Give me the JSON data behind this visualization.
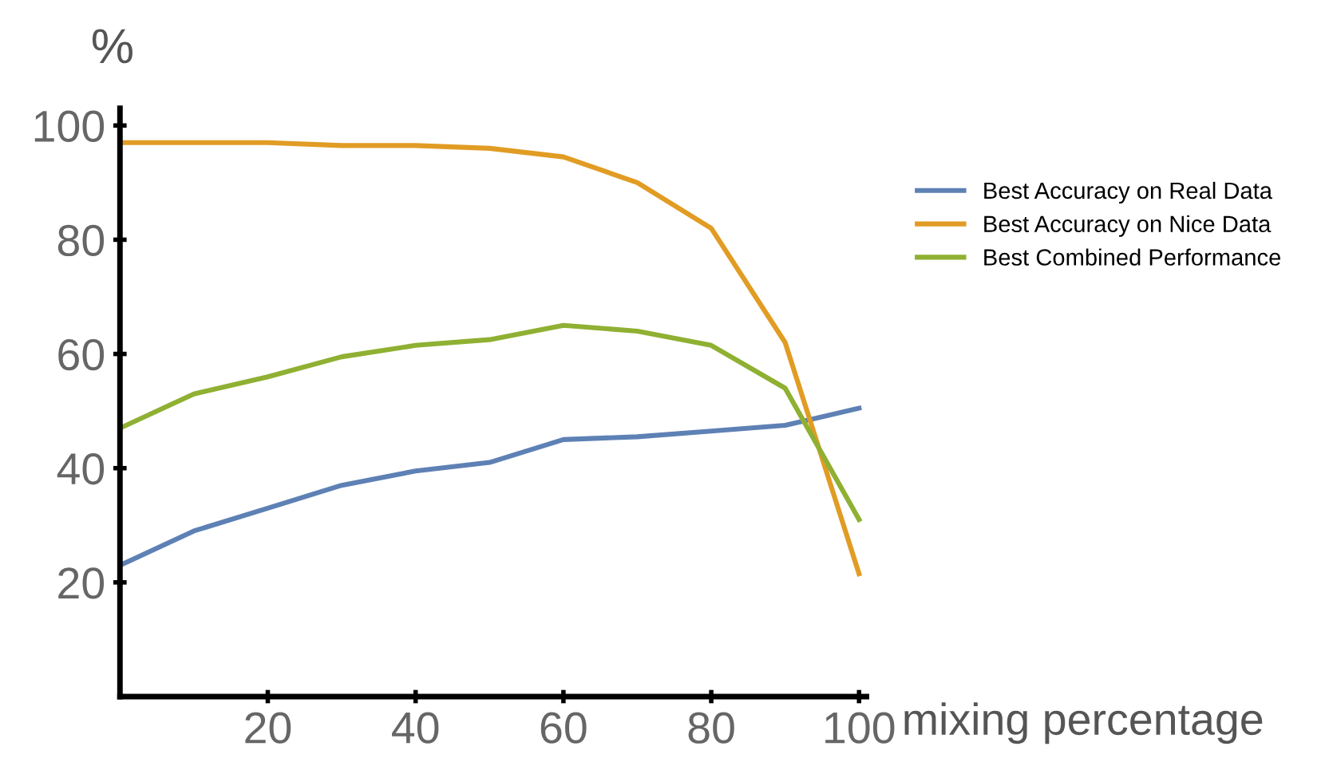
{
  "chart_data": {
    "type": "line",
    "xlabel": "mixing percentage",
    "ylabel": "%",
    "x": [
      0,
      10,
      20,
      30,
      40,
      50,
      60,
      70,
      80,
      90,
      100
    ],
    "xlim": [
      0,
      101
    ],
    "ylim": [
      0,
      103
    ],
    "xticks": [
      20,
      40,
      60,
      80,
      100
    ],
    "yticks": [
      20,
      40,
      60,
      80,
      100
    ],
    "grid": false,
    "legend": "right",
    "marker": "none",
    "line_style": "solid",
    "series": [
      {
        "name": "Best Accuracy on Real Data",
        "color": "#5e81b5",
        "values": [
          23,
          29,
          33,
          37,
          39.5,
          41,
          45,
          45.5,
          46.5,
          47.5,
          50.5
        ]
      },
      {
        "name": "Best Accuracy on Nice Data",
        "color": "#e19c24",
        "values": [
          97,
          97,
          97,
          96.5,
          96.5,
          96,
          94.5,
          90,
          82,
          62,
          21.5
        ]
      },
      {
        "name": "Best Combined Performance",
        "color": "#8fb032",
        "values": [
          47,
          53,
          56,
          59.5,
          61.5,
          62.5,
          65,
          64,
          61.5,
          54,
          31
        ]
      }
    ]
  }
}
